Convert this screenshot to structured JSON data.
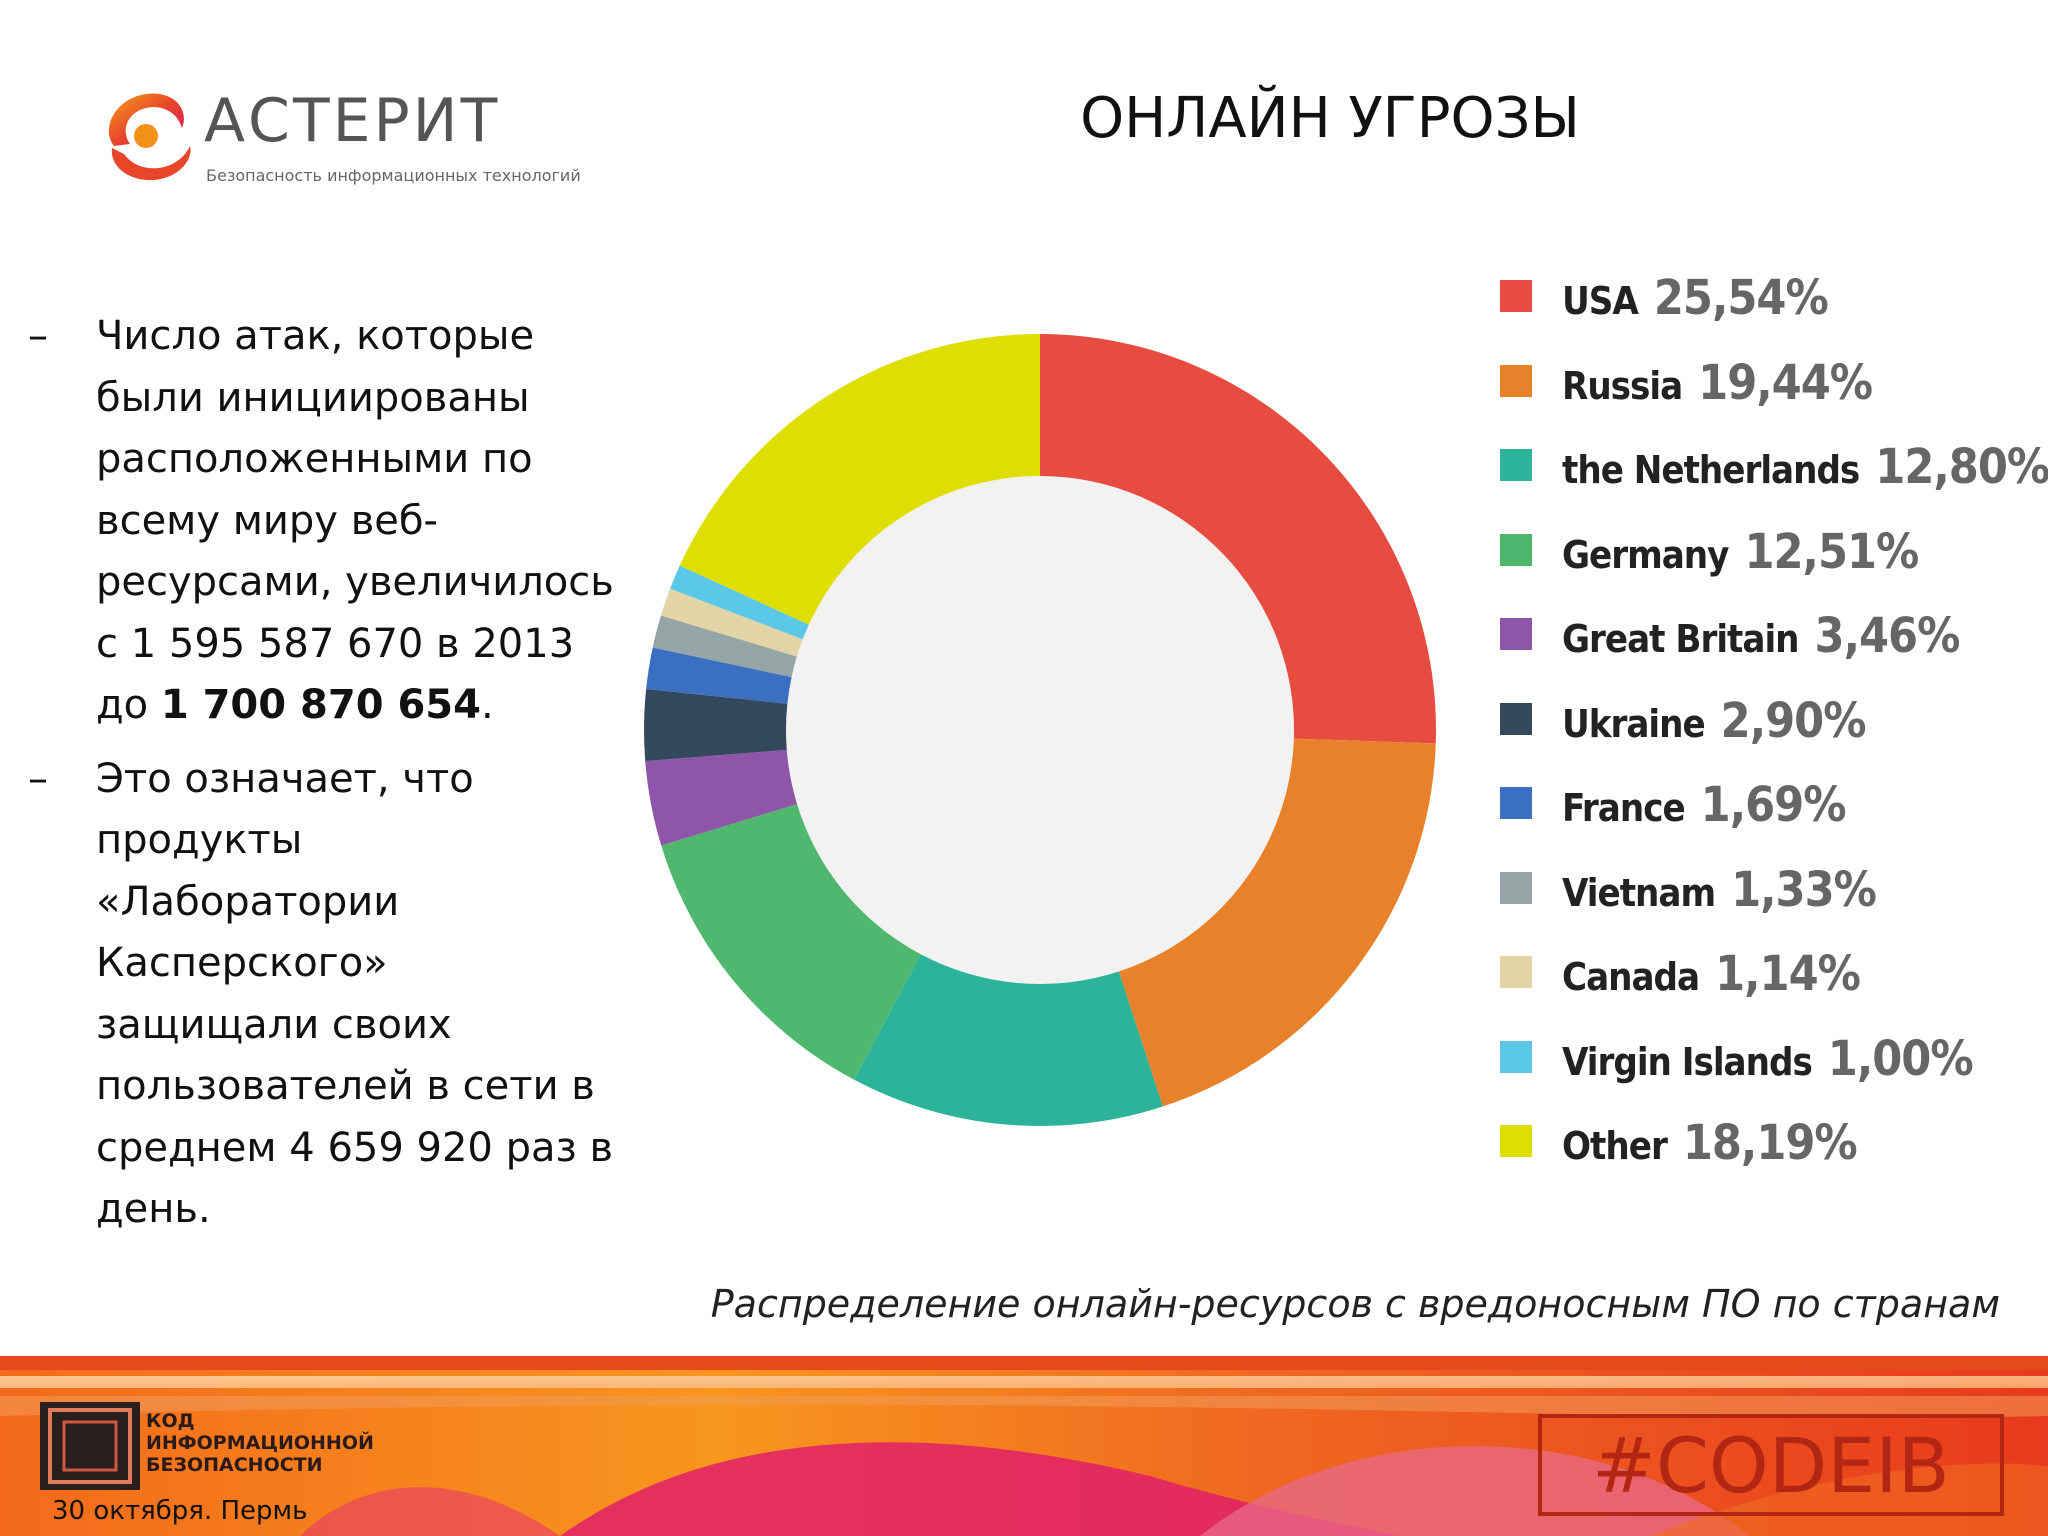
{
  "brand": {
    "name": "АСТЕРИТ",
    "tagline": "Безопасность информационных технологий"
  },
  "title": "ОНЛАЙН УГРОЗЫ",
  "bullets": {
    "b1_text": "Число атак, которые были инициированы расположенными по всему миру веб-ресурсами, увеличилось с  1 595 587 670 в 2013 до ",
    "b1_bold": "1 700 870 654",
    "b1_end": ".",
    "b2_text": "Это означает, что продукты «Лаборатории Касперского» защищали своих пользователей в сети в среднем 4 659 920 раз в день.",
    "dash": "–"
  },
  "chart_data": {
    "type": "pie",
    "donut": true,
    "legend_position": "right",
    "series": [
      {
        "label": "USA",
        "value": 25.54,
        "display": "25,54%",
        "color": "#e64c3f"
      },
      {
        "label": "Russia",
        "value": 19.44,
        "display": "19,44%",
        "color": "#e8822a"
      },
      {
        "label": "the Netherlands",
        "value": 12.8,
        "display": "12,80%",
        "color": "#2db39a"
      },
      {
        "label": "Germany",
        "value": 12.51,
        "display": "12,51%",
        "color": "#4fb86e"
      },
      {
        "label": "Great Britain",
        "value": 3.46,
        "display": "3,46%",
        "color": "#8e55a8"
      },
      {
        "label": "Ukraine",
        "value": 2.9,
        "display": "2,90%",
        "color": "#34495e"
      },
      {
        "label": "France",
        "value": 1.69,
        "display": "1,69%",
        "color": "#3b6fc2"
      },
      {
        "label": "Vietnam",
        "value": 1.33,
        "display": "1,33%",
        "color": "#95a5a6"
      },
      {
        "label": "Canada",
        "value": 1.14,
        "display": "1,14%",
        "color": "#e3d4a6"
      },
      {
        "label": "Virgin Islands",
        "value": 1.0,
        "display": "1,00%",
        "color": "#5bc8e8"
      },
      {
        "label": "Other",
        "value": 18.19,
        "display": "18,19%",
        "color": "#dede00"
      }
    ]
  },
  "caption": "Распределение онлайн-ресурсов с вредоносным ПО по странам",
  "footer": {
    "event_line1": "КОД",
    "event_line2": "ИНФОРМАЦИОННОЙ",
    "event_line3": "БЕЗОПАСНОСТИ",
    "date": "30 октября. Пермь",
    "hashtag": "#CODEIB"
  },
  "colors": {
    "accent_red": "#b32614",
    "footer_orange": "#f07a1a",
    "footer_magenta": "#e0206a"
  }
}
